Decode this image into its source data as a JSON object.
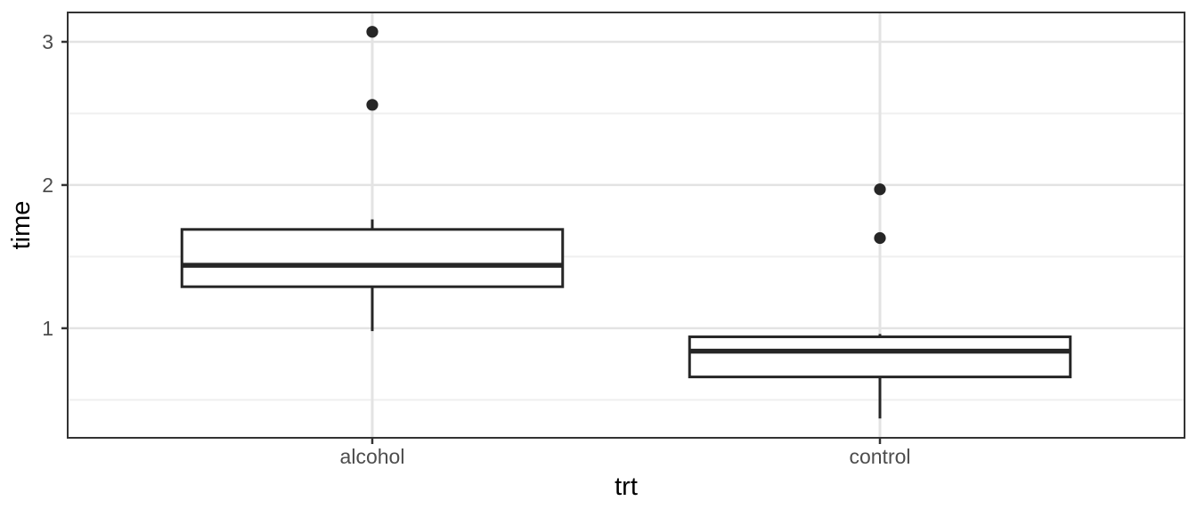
{
  "chart_data": {
    "type": "boxplot",
    "title": "",
    "xlabel": "trt",
    "ylabel": "time",
    "categories": [
      "alcohol",
      "control"
    ],
    "y_ticks": [
      1,
      2,
      3
    ],
    "y_minor_ticks": [
      0.5,
      1.5,
      2.5
    ],
    "ylim": [
      0.235,
      3.205
    ],
    "grid": "horizontal major+minor gridlines on; vertical major gridline at each category; white panel with dark border (ggplot theme_bw); no legend",
    "legend_position": "none",
    "series": [
      {
        "category": "alcohol",
        "whisker_low": 0.98,
        "q1": 1.29,
        "median": 1.44,
        "q3": 1.69,
        "whisker_high": 1.76,
        "outliers": [
          2.56,
          3.07
        ]
      },
      {
        "category": "control",
        "whisker_low": 0.37,
        "q1": 0.66,
        "median": 0.84,
        "q3": 0.94,
        "whisker_high": 0.96,
        "outliers": [
          1.63,
          1.97
        ]
      }
    ],
    "colors": {
      "background": "#ffffff",
      "panel_fill": "#ffffff",
      "panel_border": "#333333",
      "grid_major": "#e3e3e3",
      "grid_minor": "#efefef",
      "box_stroke": "#262626",
      "box_fill": "#ffffff",
      "outlier_fill": "#262626",
      "tick_mark": "#333333",
      "tick_label": "#4d4d4d",
      "axis_title": "#000000"
    }
  }
}
